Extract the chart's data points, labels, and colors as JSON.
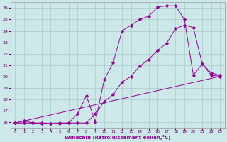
{
  "xlabel": "Windchill (Refroidissement éolien,°C)",
  "bg_color": "#cce8e8",
  "grid_color": "#aacccc",
  "line_color": "#990099",
  "xlim": [
    -0.5,
    23.5
  ],
  "ylim": [
    15.5,
    26.5
  ],
  "xticks": [
    0,
    1,
    2,
    3,
    4,
    5,
    6,
    7,
    8,
    9,
    10,
    11,
    12,
    13,
    14,
    15,
    16,
    17,
    18,
    19,
    20,
    21,
    22,
    23
  ],
  "yticks": [
    16,
    17,
    18,
    19,
    20,
    21,
    22,
    23,
    24,
    25,
    26
  ],
  "line1_x": [
    0,
    1,
    2,
    3,
    4,
    5,
    6,
    7,
    8,
    9,
    10,
    11,
    12,
    13,
    14,
    15,
    16,
    17,
    18,
    19,
    20,
    21,
    22,
    23
  ],
  "line1_y": [
    15.9,
    16.1,
    15.9,
    15.9,
    15.85,
    15.9,
    15.9,
    16.7,
    18.3,
    16.0,
    19.7,
    21.2,
    24.0,
    24.5,
    25.0,
    25.3,
    26.1,
    26.2,
    26.2,
    25.0,
    20.1,
    21.1,
    20.3,
    20.1
  ],
  "line2_x": [
    0,
    1,
    2,
    3,
    4,
    5,
    6,
    7,
    8,
    9,
    10,
    11,
    12,
    13,
    14,
    15,
    16,
    17,
    18,
    19,
    20,
    21,
    22,
    23
  ],
  "line2_y": [
    15.9,
    15.9,
    15.9,
    15.85,
    15.85,
    15.85,
    15.9,
    15.9,
    15.9,
    16.7,
    17.8,
    18.4,
    19.5,
    20.0,
    20.9,
    21.5,
    22.3,
    22.9,
    24.2,
    24.5,
    24.3,
    21.1,
    20.1,
    20.0
  ],
  "line3_x": [
    0,
    23
  ],
  "line3_y": [
    15.9,
    20.0
  ]
}
